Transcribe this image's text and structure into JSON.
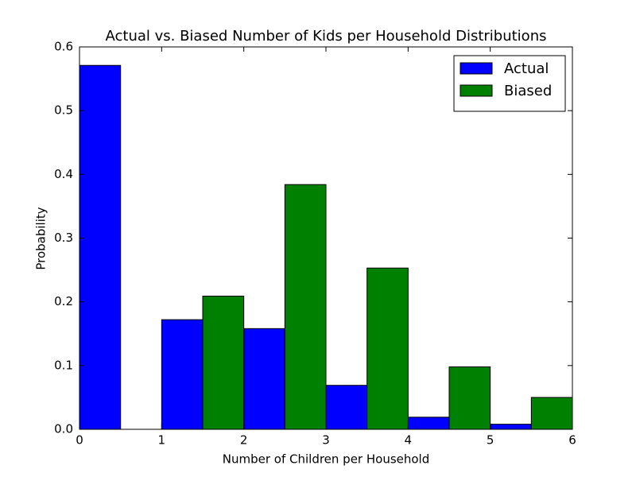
{
  "chart_data": {
    "type": "bar",
    "title": "Actual vs. Biased Number of Kids per Household Distributions",
    "x_label": "Number of Children per Household",
    "y_label": "Probability",
    "x": [
      0,
      1,
      2,
      3,
      4,
      5
    ],
    "bar_width": 0.5,
    "series": [
      {
        "name": "Actual",
        "color": "#0000ff",
        "values": [
          0.571,
          0.172,
          0.158,
          0.069,
          0.019,
          0.008
        ]
      },
      {
        "name": "Biased",
        "color": "#008000",
        "values": [
          0,
          0.209,
          0.384,
          0.253,
          0.098,
          0.05
        ]
      }
    ],
    "xlim": [
      0,
      6
    ],
    "xticks": [
      0,
      1,
      2,
      3,
      4,
      5,
      6
    ],
    "ylim": [
      0,
      0.6
    ],
    "yticks": [
      {
        "value": 0,
        "label": "0.0"
      },
      0.1,
      0.2,
      0.3,
      0.4,
      0.5,
      0.6
    ],
    "legend": "upper right"
  }
}
